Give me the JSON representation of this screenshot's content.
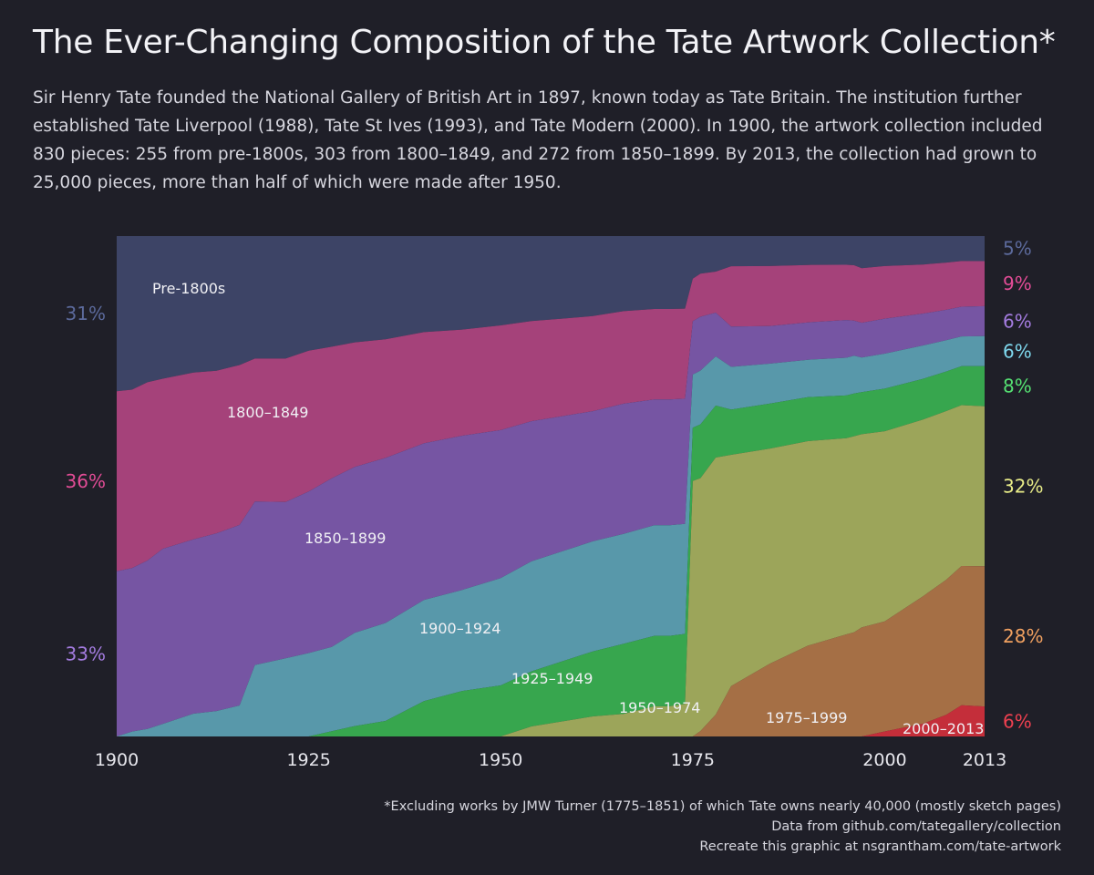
{
  "header": {
    "title": "The Ever-Changing Composition of the Tate Artwork Collection*",
    "subtitle": "Sir Henry Tate founded the National Gallery of British Art in 1897, known today as Tate Britain. The institution further established Tate Liverpool (1988), Tate St Ives (1993), and Tate Modern (2000). In 1900, the artwork collection included 830 pieces: 255 from pre-1800s, 303 from 1800–1849, and 272 from 1850–1899. By 2013, the collection had grown to 25,000 pieces, more than half of which were made after 1950."
  },
  "footer": {
    "note": "*Excluding works by JMW Turner (1775–1851) of which Tate owns nearly 40,000 (mostly sketch pages)",
    "source": "Data from github.com/tategallery/collection",
    "credit": "Recreate this graphic at nsgrantham.com/tate-artwork"
  },
  "colors": {
    "background": "#1f1f28",
    "pre1800": "#3d4466",
    "p1800_1849": "#a5427a",
    "p1850_1899": "#7655a3",
    "p1900_1924": "#5898aa",
    "p1925_1949": "#37a64e",
    "p1950_1974": "#9ca55a",
    "p1975_1999": "#a56f45",
    "p2000_2013": "#c42e3a"
  },
  "chart_data": {
    "type": "area",
    "stacking": "percent",
    "xlabel": "",
    "ylabel": "",
    "xlim": [
      1900,
      2013
    ],
    "ylim": [
      0,
      100
    ],
    "x_ticks": [
      "1900",
      "1925",
      "1950",
      "1975",
      "2000",
      "2013"
    ],
    "x_tick_values": [
      1900,
      1925,
      1950,
      1975,
      2000,
      2013
    ],
    "grid": false,
    "legend": "none (direct labels)",
    "x": [
      1900,
      1902,
      1904,
      1906,
      1910,
      1913,
      1916,
      1918,
      1922,
      1925,
      1928,
      1931,
      1935,
      1940,
      1945,
      1950,
      1954,
      1958,
      1962,
      1966,
      1970,
      1972,
      1974,
      1975,
      1976,
      1978,
      1980,
      1985,
      1990,
      1995,
      1996,
      1997,
      2000,
      2005,
      2008,
      2010,
      2013
    ],
    "series": [
      {
        "name": "Pre-1800s",
        "color_key": "pre1800",
        "values": [
          31,
          31,
          29.5,
          28.5,
          27,
          26.5,
          25,
          24,
          23.5,
          22,
          21,
          20.5,
          20,
          19,
          18.5,
          17.5,
          17,
          16.5,
          16,
          15,
          14.5,
          14.5,
          14.5,
          8,
          7,
          6.5,
          6,
          6,
          5.8,
          5.7,
          5.8,
          6.5,
          6,
          5.8,
          5.5,
          5.2,
          5
        ]
      },
      {
        "name": "1800–1849",
        "color_key": "p1800_1849",
        "values": [
          36,
          36,
          36,
          34,
          33,
          32,
          31,
          28,
          27.5,
          27,
          25,
          24,
          23,
          22,
          21,
          20.5,
          20,
          19.5,
          19,
          18.5,
          18,
          18,
          18,
          8,
          8,
          7.5,
          12,
          12,
          11.5,
          11,
          11,
          11,
          10.5,
          10,
          9.8,
          9.5,
          9
        ]
      },
      {
        "name": "1850–1899",
        "color_key": "p1850_1899",
        "values": [
          33,
          33,
          34,
          35,
          34.5,
          35,
          35,
          32,
          30,
          31,
          32,
          32,
          32,
          31,
          30.5,
          29,
          28,
          27,
          26,
          26,
          25,
          25,
          25,
          10,
          10,
          8,
          8,
          7.5,
          7.5,
          7.5,
          7,
          7,
          7,
          6.5,
          6.3,
          6.2,
          6
        ]
      },
      {
        "name": "1900–1924",
        "color_key": "p1900_1924",
        "values": [
          0,
          1,
          1.5,
          2.5,
          4.5,
          5,
          6,
          14,
          15,
          16,
          16,
          18,
          19,
          20,
          20,
          21,
          22,
          22,
          22,
          22,
          22,
          22,
          22,
          10,
          10,
          9,
          8.5,
          8,
          7.5,
          7.5,
          7.5,
          7,
          7,
          6.8,
          6.5,
          6.2,
          6
        ]
      },
      {
        "name": "1925–1949",
        "color_key": "p1925_1949",
        "values": [
          0,
          0,
          0,
          0,
          0,
          0,
          0,
          0,
          0,
          0,
          1,
          2,
          3,
          7,
          9,
          10,
          11,
          12,
          13,
          14,
          14,
          14,
          14,
          10,
          10,
          9.5,
          9,
          9,
          8.8,
          8.5,
          8.5,
          8.5,
          8.5,
          8.3,
          8.2,
          8.1,
          8
        ]
      },
      {
        "name": "1950–1974",
        "color_key": "p1950_1974",
        "values": [
          0,
          0,
          0,
          0,
          0,
          0,
          0,
          0,
          0,
          0,
          0,
          0,
          0,
          0,
          0,
          0,
          2,
          3,
          4,
          4.5,
          6,
          6,
          6.5,
          48,
          47,
          47,
          46,
          43,
          41,
          39,
          39,
          39,
          38,
          36,
          35,
          33.5,
          32
        ]
      },
      {
        "name": "1975–1999",
        "color_key": "p1975_1999",
        "values": [
          0,
          0,
          0,
          0,
          0,
          0,
          0,
          0,
          0,
          0,
          0,
          0,
          0,
          0,
          0,
          0,
          0,
          0,
          0,
          0,
          0,
          0,
          0,
          0,
          1,
          4,
          10,
          14.5,
          18.2,
          20.3,
          20.7,
          22,
          22,
          26,
          28,
          29,
          28
        ]
      },
      {
        "name": "2000–2013",
        "color_key": "p2000_2013",
        "values": [
          0,
          0,
          0,
          0,
          0,
          0,
          0,
          0,
          0,
          0,
          0,
          0,
          0,
          0,
          0,
          0,
          0,
          0,
          0,
          0,
          0,
          0,
          0,
          0,
          0,
          0,
          0,
          0,
          0,
          0,
          0,
          0,
          1,
          2.6,
          4.5,
          6.5,
          6
        ]
      }
    ],
    "start_labels": [
      {
        "text": "31%",
        "color_key": "pre1800",
        "text_color": "#5c6a9c"
      },
      {
        "text": "36%",
        "color_key": "p1800_1849",
        "text_color": "#e24c96"
      },
      {
        "text": "33%",
        "color_key": "p1850_1899",
        "text_color": "#a47ce0"
      }
    ],
    "end_labels": [
      {
        "text": "5%",
        "text_color": "#5c6a9c"
      },
      {
        "text": "9%",
        "text_color": "#e24c96"
      },
      {
        "text": "6%",
        "text_color": "#a47ce0"
      },
      {
        "text": "6%",
        "text_color": "#7fd8ee"
      },
      {
        "text": "8%",
        "text_color": "#55e072"
      },
      {
        "text": "32%",
        "text_color": "#e8ec88"
      },
      {
        "text": "28%",
        "text_color": "#f0a060"
      },
      {
        "text": "6%",
        "text_color": "#ee4050"
      }
    ]
  }
}
